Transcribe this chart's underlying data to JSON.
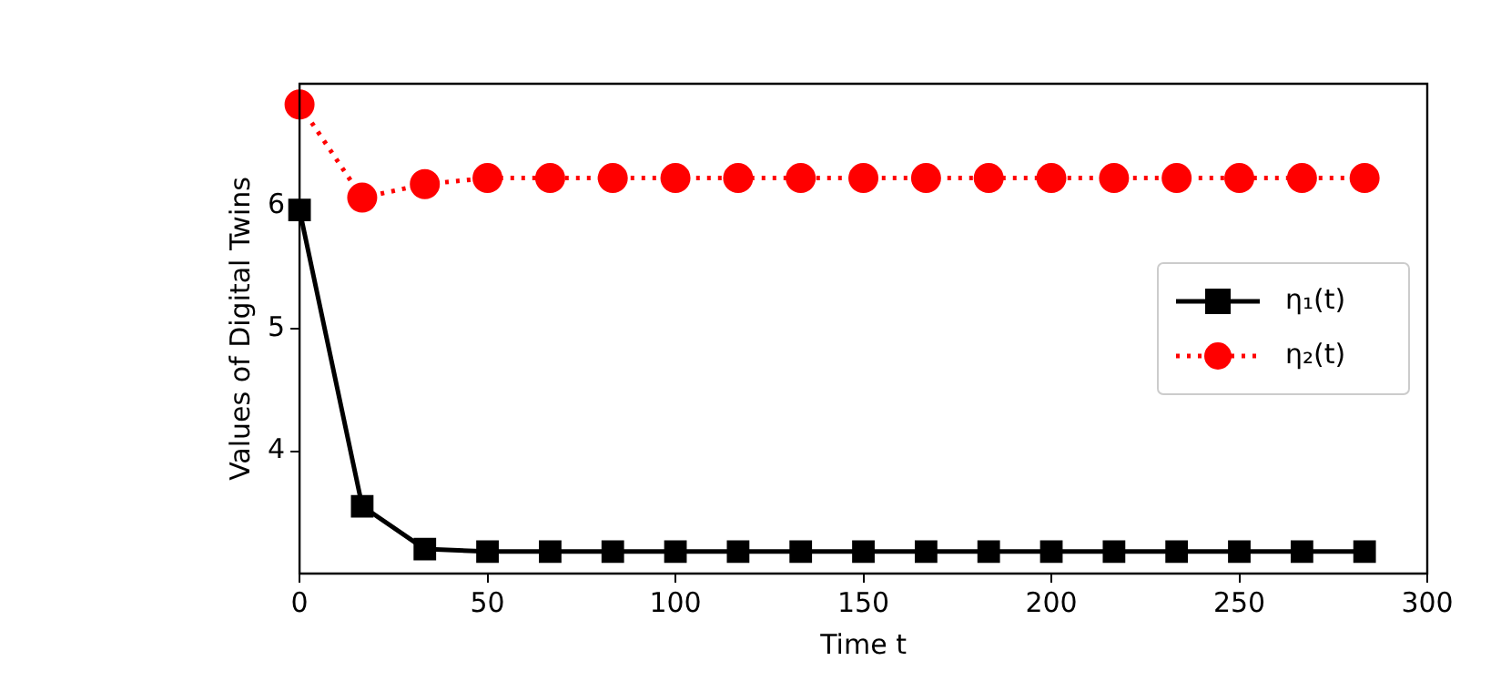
{
  "chart_data": {
    "type": "line",
    "xlabel": "Time t",
    "ylabel": "Values of Digital Twins",
    "x": [
      0,
      16.67,
      33.33,
      50,
      66.67,
      83.33,
      100,
      116.67,
      133.33,
      150,
      166.67,
      183.33,
      200,
      216.67,
      233.33,
      250,
      266.67,
      283.33
    ],
    "series": [
      {
        "name": "η₁(t)",
        "color": "#000000",
        "marker": "square",
        "line_style": "solid",
        "values": [
          5.97,
          3.55,
          3.2,
          3.18,
          3.18,
          3.18,
          3.18,
          3.18,
          3.18,
          3.18,
          3.18,
          3.18,
          3.18,
          3.18,
          3.18,
          3.18,
          3.18,
          3.18
        ]
      },
      {
        "name": "η₂(t)",
        "color": "#ff0000",
        "marker": "circle",
        "line_style": "dotted",
        "values": [
          6.83,
          6.07,
          6.18,
          6.23,
          6.23,
          6.23,
          6.23,
          6.23,
          6.23,
          6.23,
          6.23,
          6.23,
          6.23,
          6.23,
          6.23,
          6.23,
          6.23,
          6.23
        ]
      }
    ],
    "xlim": [
      0,
      300
    ],
    "xticks": [
      0,
      50,
      100,
      150,
      200,
      250,
      300
    ],
    "ylim": [
      3,
      7
    ],
    "yticks": [
      4,
      5,
      6
    ],
    "grid": false,
    "legend": "right"
  }
}
